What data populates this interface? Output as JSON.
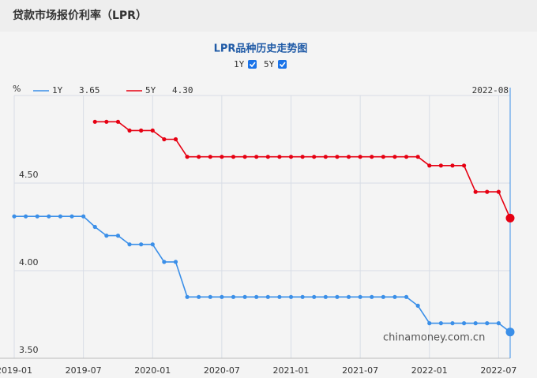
{
  "page_title": "贷款市场报价利率（LPR）",
  "chart_data": {
    "type": "line",
    "title": "LPR品种历史走势图",
    "y_unit": "%",
    "x": [
      "2019-01",
      "2019-02",
      "2019-03",
      "2019-04",
      "2019-05",
      "2019-06",
      "2019-07",
      "2019-08",
      "2019-09",
      "2019-10",
      "2019-11",
      "2019-12",
      "2020-01",
      "2020-02",
      "2020-03",
      "2020-04",
      "2020-05",
      "2020-06",
      "2020-07",
      "2020-08",
      "2020-09",
      "2020-10",
      "2020-11",
      "2020-12",
      "2021-01",
      "2021-02",
      "2021-03",
      "2021-04",
      "2021-05",
      "2021-06",
      "2021-07",
      "2021-08",
      "2021-09",
      "2021-10",
      "2021-11",
      "2021-12",
      "2022-01",
      "2022-02",
      "2022-03",
      "2022-04",
      "2022-05",
      "2022-06",
      "2022-07",
      "2022-08"
    ],
    "xticks": [
      "2019-01",
      "2019-07",
      "2020-01",
      "2020-07",
      "2021-01",
      "2021-07",
      "2022-01",
      "2022-07"
    ],
    "series": [
      {
        "name": "1Y",
        "color": "#3b8fe8",
        "values": [
          4.31,
          4.31,
          4.31,
          4.31,
          4.31,
          4.31,
          4.31,
          4.25,
          4.2,
          4.2,
          4.15,
          4.15,
          4.15,
          4.05,
          4.05,
          3.85,
          3.85,
          3.85,
          3.85,
          3.85,
          3.85,
          3.85,
          3.85,
          3.85,
          3.85,
          3.85,
          3.85,
          3.85,
          3.85,
          3.85,
          3.85,
          3.85,
          3.85,
          3.85,
          3.85,
          3.8,
          3.7,
          3.7,
          3.7,
          3.7,
          3.7,
          3.7,
          3.7,
          3.65
        ]
      },
      {
        "name": "5Y",
        "color": "#e60012",
        "values": [
          null,
          null,
          null,
          null,
          null,
          null,
          null,
          4.85,
          4.85,
          4.85,
          4.8,
          4.8,
          4.8,
          4.75,
          4.75,
          4.65,
          4.65,
          4.65,
          4.65,
          4.65,
          4.65,
          4.65,
          4.65,
          4.65,
          4.65,
          4.65,
          4.65,
          4.65,
          4.65,
          4.65,
          4.65,
          4.65,
          4.65,
          4.65,
          4.65,
          4.65,
          4.6,
          4.6,
          4.6,
          4.6,
          4.45,
          4.45,
          4.45,
          4.3
        ]
      }
    ],
    "legend_values": [
      "3.65",
      "4.30"
    ],
    "ylim": [
      3.5,
      5.0
    ],
    "yticks": [
      {
        "value": 3.5,
        "label": "3.50"
      },
      {
        "value": 4.0,
        "label": "4.00"
      },
      {
        "value": 4.5,
        "label": "4.50"
      }
    ],
    "grid": true,
    "watermark": "chinamoney.com.cn"
  }
}
